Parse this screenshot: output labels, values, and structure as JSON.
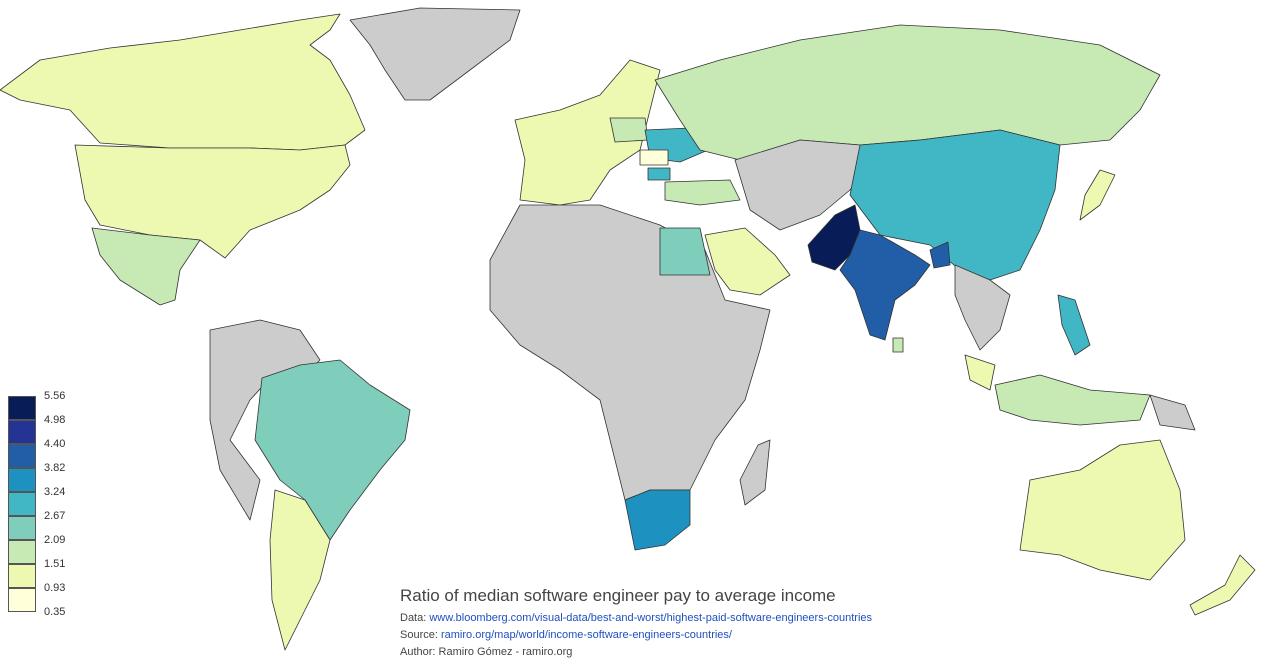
{
  "title": "Ratio of median software engineer pay to average income",
  "data_label": "Data:",
  "data_link": "www.bloomberg.com/visual-data/best-and-worst/highest-paid-software-engineers-countries",
  "source_label": "Source:",
  "source_link": "ramiro.org/map/world/income-software-engineers-countries/",
  "author": "Author: Ramiro Gómez - ramiro.org",
  "legend": {
    "ticks": [
      "5.56",
      "4.98",
      "4.40",
      "3.82",
      "3.24",
      "2.67",
      "2.09",
      "1.51",
      "0.93",
      "0.35"
    ],
    "colors": [
      "#081d58",
      "#253494",
      "#225ea8",
      "#1d91c0",
      "#41b6c4",
      "#7fcdbb",
      "#c7e9b4",
      "#edf8b1",
      "#ffffd9"
    ]
  },
  "colors": {
    "no_data": "#cccccc",
    "border": "#333333"
  },
  "countries": [
    {
      "name": "Pakistan",
      "color": "#081d58"
    },
    {
      "name": "India",
      "color": "#225ea8"
    },
    {
      "name": "Bangladesh",
      "color": "#225ea8"
    },
    {
      "name": "South Africa",
      "color": "#1d91c0"
    },
    {
      "name": "China",
      "color": "#41b6c4"
    },
    {
      "name": "Ukraine",
      "color": "#41b6c4"
    },
    {
      "name": "Philippines",
      "color": "#41b6c4"
    },
    {
      "name": "Bulgaria",
      "color": "#41b6c4"
    },
    {
      "name": "Egypt",
      "color": "#7fcdbb"
    },
    {
      "name": "Brazil",
      "color": "#7fcdbb"
    },
    {
      "name": "Russia",
      "color": "#c7e9b4"
    },
    {
      "name": "Mexico",
      "color": "#c7e9b4"
    },
    {
      "name": "Turkey",
      "color": "#c7e9b4"
    },
    {
      "name": "Poland",
      "color": "#c7e9b4"
    },
    {
      "name": "Sri Lanka",
      "color": "#c7e9b4"
    },
    {
      "name": "Indonesia",
      "color": "#c7e9b4"
    },
    {
      "name": "United States",
      "color": "#edf8b1"
    },
    {
      "name": "Canada",
      "color": "#edf8b1"
    },
    {
      "name": "Argentina",
      "color": "#edf8b1"
    },
    {
      "name": "Australia",
      "color": "#edf8b1"
    },
    {
      "name": "Saudi Arabia",
      "color": "#edf8b1"
    },
    {
      "name": "Western Europe",
      "color": "#edf8b1"
    },
    {
      "name": "Japan",
      "color": "#edf8b1"
    },
    {
      "name": "New Zealand",
      "color": "#edf8b1"
    },
    {
      "name": "Malaysia",
      "color": "#edf8b1"
    },
    {
      "name": "Romania",
      "color": "#ffffd9"
    },
    {
      "name": "Greenland",
      "color": "#cccccc"
    },
    {
      "name": "Africa (other)",
      "color": "#cccccc"
    },
    {
      "name": "Central Asia",
      "color": "#cccccc"
    },
    {
      "name": "South America (other)",
      "color": "#cccccc"
    },
    {
      "name": "Madagascar",
      "color": "#cccccc"
    },
    {
      "name": "Mainland Southeast Asia",
      "color": "#cccccc"
    },
    {
      "name": "Papua New Guinea",
      "color": "#cccccc"
    }
  ]
}
